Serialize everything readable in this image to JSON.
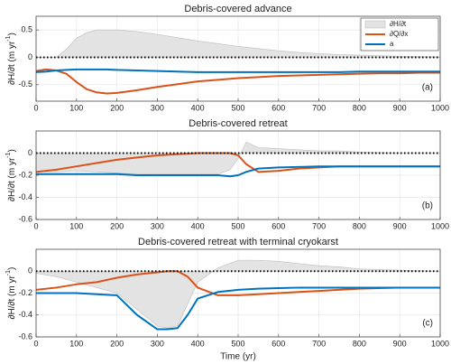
{
  "chart_data": [
    {
      "type": "line",
      "title": "Debris-covered advance",
      "label": "(a)",
      "ylabel": "∂H/∂t (m yr",
      "ylabel_sup": "-1",
      "ylabel_end": ")",
      "xlim": [
        0,
        1000
      ],
      "xticks": [
        0,
        100,
        200,
        300,
        400,
        500,
        600,
        700,
        800,
        900,
        1000
      ],
      "ylim": [
        -0.8,
        0.75
      ],
      "yticks": [
        -0.5,
        0,
        0.5
      ],
      "grid": true,
      "zero_line": true,
      "legend": "upper right",
      "x": [
        0,
        25,
        50,
        75,
        100,
        125,
        150,
        175,
        200,
        250,
        300,
        350,
        400,
        450,
        500,
        550,
        600,
        650,
        700,
        750,
        800,
        850,
        900,
        950,
        1000
      ],
      "series": [
        {
          "name": "∂H/∂t",
          "color": "#e3e3e3",
          "style": "area",
          "values": [
            0,
            0,
            0,
            0.15,
            0.35,
            0.45,
            0.5,
            0.5,
            0.5,
            0.47,
            0.42,
            0.36,
            0.3,
            0.25,
            0.2,
            0.16,
            0.12,
            0.09,
            0.07,
            0.05,
            0.04,
            0.03,
            0.02,
            0.015,
            0.01
          ]
        },
        {
          "name": "∂Q/∂x",
          "color": "#d95319",
          "style": "line",
          "values": [
            -0.25,
            -0.22,
            -0.24,
            -0.3,
            -0.45,
            -0.58,
            -0.64,
            -0.66,
            -0.65,
            -0.6,
            -0.54,
            -0.49,
            -0.44,
            -0.41,
            -0.38,
            -0.36,
            -0.34,
            -0.33,
            -0.32,
            -0.31,
            -0.3,
            -0.29,
            -0.29,
            -0.28,
            -0.28
          ]
        },
        {
          "name": "a",
          "color": "#0072bd",
          "style": "line",
          "values": [
            -0.27,
            -0.26,
            -0.24,
            -0.23,
            -0.22,
            -0.22,
            -0.22,
            -0.22,
            -0.23,
            -0.24,
            -0.25,
            -0.26,
            -0.27,
            -0.27,
            -0.27,
            -0.27,
            -0.27,
            -0.27,
            -0.27,
            -0.27,
            -0.26,
            -0.26,
            -0.26,
            -0.26,
            -0.26
          ]
        }
      ]
    },
    {
      "type": "line",
      "title": "Debris-covered retreat",
      "label": "(b)",
      "ylabel": "∂H/∂t (m yr",
      "ylabel_sup": "-1",
      "ylabel_end": ")",
      "xlim": [
        0,
        1000
      ],
      "xticks": [
        0,
        100,
        200,
        300,
        400,
        500,
        600,
        700,
        800,
        900,
        1000
      ],
      "ylim": [
        -0.6,
        0.2
      ],
      "yticks": [
        -0.6,
        -0.4,
        -0.2,
        0
      ],
      "grid": true,
      "zero_line": true,
      "x": [
        0,
        50,
        100,
        150,
        200,
        250,
        300,
        350,
        400,
        450,
        480,
        500,
        520,
        550,
        600,
        650,
        700,
        750,
        800,
        900,
        1000
      ],
      "series": [
        {
          "name": "∂H/∂t",
          "color": "#e3e3e3",
          "style": "area",
          "values": [
            -0.17,
            -0.17,
            -0.16,
            -0.17,
            -0.18,
            -0.19,
            -0.19,
            -0.19,
            -0.19,
            -0.19,
            -0.15,
            -0.05,
            0.1,
            0.05,
            0.04,
            0.03,
            0.02,
            0.02,
            0.01,
            0,
            0
          ]
        },
        {
          "name": "∂Q/∂x",
          "color": "#d95319",
          "style": "line",
          "values": [
            -0.17,
            -0.15,
            -0.12,
            -0.09,
            -0.06,
            -0.04,
            -0.02,
            -0.01,
            0,
            0,
            0,
            -0.02,
            -0.1,
            -0.17,
            -0.16,
            -0.14,
            -0.13,
            -0.12,
            -0.12,
            -0.12,
            -0.12
          ]
        },
        {
          "name": "a",
          "color": "#0072bd",
          "style": "line",
          "values": [
            -0.19,
            -0.19,
            -0.19,
            -0.19,
            -0.19,
            -0.2,
            -0.2,
            -0.2,
            -0.2,
            -0.2,
            -0.21,
            -0.2,
            -0.17,
            -0.14,
            -0.13,
            -0.125,
            -0.12,
            -0.12,
            -0.12,
            -0.12,
            -0.12
          ]
        }
      ]
    },
    {
      "type": "line",
      "title": "Debris-covered retreat with terminal cryokarst",
      "label": "(c)",
      "ylabel": "∂H/∂t (m yr",
      "ylabel_sup": "-1",
      "ylabel_end": ")",
      "xlabel": "Time (yr)",
      "xlim": [
        0,
        1000
      ],
      "xticks": [
        0,
        100,
        200,
        300,
        400,
        500,
        600,
        700,
        800,
        900,
        1000
      ],
      "ylim": [
        -0.6,
        0.2
      ],
      "yticks": [
        -0.6,
        -0.4,
        -0.2,
        0
      ],
      "grid": true,
      "zero_line": true,
      "x": [
        0,
        50,
        100,
        150,
        200,
        250,
        300,
        325,
        350,
        375,
        400,
        450,
        500,
        550,
        600,
        650,
        700,
        750,
        800,
        900,
        1000
      ],
      "series": [
        {
          "name": "∂H/∂t",
          "color": "#e3e3e3",
          "style": "area",
          "values": [
            -0.02,
            -0.05,
            -0.1,
            -0.15,
            -0.2,
            -0.35,
            -0.5,
            -0.52,
            -0.5,
            -0.3,
            -0.1,
            0.03,
            0.1,
            0.1,
            0.09,
            0.07,
            0.05,
            0.04,
            0.02,
            0.01,
            0
          ]
        },
        {
          "name": "∂Q/∂x",
          "color": "#d95319",
          "style": "line",
          "values": [
            -0.17,
            -0.15,
            -0.12,
            -0.1,
            -0.06,
            -0.03,
            -0.01,
            0,
            0,
            -0.05,
            -0.15,
            -0.22,
            -0.22,
            -0.21,
            -0.2,
            -0.19,
            -0.18,
            -0.17,
            -0.16,
            -0.15,
            -0.15
          ]
        },
        {
          "name": "a",
          "color": "#0072bd",
          "style": "line",
          "values": [
            -0.2,
            -0.2,
            -0.2,
            -0.21,
            -0.22,
            -0.4,
            -0.53,
            -0.53,
            -0.52,
            -0.4,
            -0.25,
            -0.19,
            -0.17,
            -0.16,
            -0.155,
            -0.15,
            -0.15,
            -0.15,
            -0.15,
            -0.15,
            -0.15
          ]
        }
      ]
    }
  ]
}
